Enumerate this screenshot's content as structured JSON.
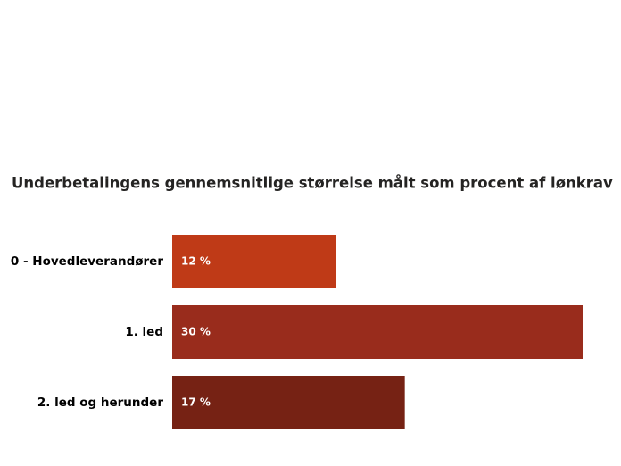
{
  "chart_data": {
    "type": "bar",
    "orientation": "horizontal",
    "title": "Underbetalingens gennemsnitlige størrelse målt som procent af lønkrav",
    "categories": [
      "0 - Hovedleverandører",
      "1. led",
      "2. led og herunder"
    ],
    "values": [
      12,
      30,
      17
    ],
    "value_labels": [
      "12 %",
      "30 %",
      "17 %"
    ],
    "colors": [
      "#bf3a17",
      "#992c1c",
      "#762214"
    ]
  }
}
